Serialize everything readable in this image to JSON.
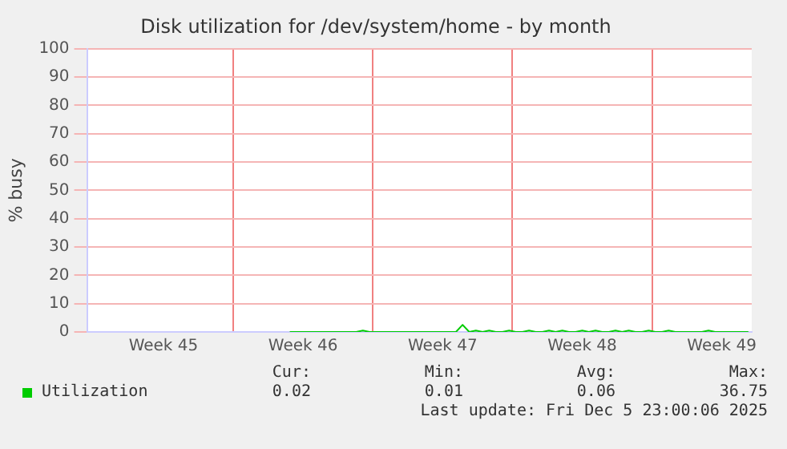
{
  "chart_data": {
    "type": "line",
    "title": "Disk utilization for /dev/system/home - by month",
    "ylabel": "% busy",
    "categories": [
      null,
      null,
      null,
      null,
      null,
      null,
      null,
      null,
      null,
      null,
      null,
      "Week 45",
      null,
      null,
      null,
      null,
      null,
      null,
      null,
      null,
      null,
      null,
      null,
      null,
      null,
      null,
      null,
      null,
      null,
      null,
      null,
      null,
      "Week 46",
      null,
      null,
      null,
      null,
      null,
      null,
      null,
      null,
      null,
      null,
      null,
      null,
      null,
      null,
      null,
      null,
      null,
      null,
      null,
      null,
      "Week 47",
      null,
      null,
      null,
      null,
      null,
      null,
      null,
      null,
      null,
      null,
      null,
      null,
      null,
      null,
      null,
      null,
      null,
      null,
      null,
      null,
      "Week 48",
      null,
      null,
      null,
      null,
      null,
      null,
      null,
      null,
      null,
      null,
      null,
      null,
      null,
      null,
      null,
      null,
      null,
      null,
      null,
      null,
      "Week 49",
      null,
      null,
      null,
      null
    ],
    "series": [
      {
        "name": "Utilization",
        "color": "#00cc00",
        "values": [
          null,
          null,
          null,
          null,
          null,
          null,
          null,
          null,
          null,
          null,
          null,
          null,
          null,
          null,
          null,
          null,
          null,
          null,
          null,
          null,
          null,
          null,
          null,
          null,
          null,
          null,
          null,
          null,
          null,
          null,
          0,
          0,
          0,
          0,
          0,
          0,
          0,
          0,
          0,
          0,
          0,
          0.5,
          0,
          0,
          0,
          0,
          0,
          0,
          0,
          0,
          0,
          0,
          0,
          0,
          0,
          0,
          2.5,
          0,
          0.5,
          0,
          0.5,
          0,
          0,
          0.5,
          0,
          0,
          0.5,
          0,
          0,
          0.5,
          0,
          0.5,
          0,
          0,
          0.5,
          0,
          0.5,
          0,
          0,
          0.5,
          0,
          0.5,
          0,
          0,
          0.5,
          0,
          0,
          0.5,
          0,
          0,
          0,
          0,
          0,
          0.5,
          0,
          0,
          0,
          0,
          0,
          0
        ]
      }
    ],
    "ylim": [
      0,
      100
    ],
    "yticks": [
      0,
      10,
      20,
      30,
      40,
      50,
      60,
      70,
      80,
      90,
      100
    ],
    "grid": true,
    "legend": "bottom",
    "marker": "none",
    "line_style": "solid",
    "annotations": [
      "Cur:",
      "Min:",
      "Avg:",
      "Max:",
      "0.02",
      "0.01",
      "0.06",
      "36.75",
      "Last update: Fri Dec  5 23:00:06 2025"
    ]
  }
}
